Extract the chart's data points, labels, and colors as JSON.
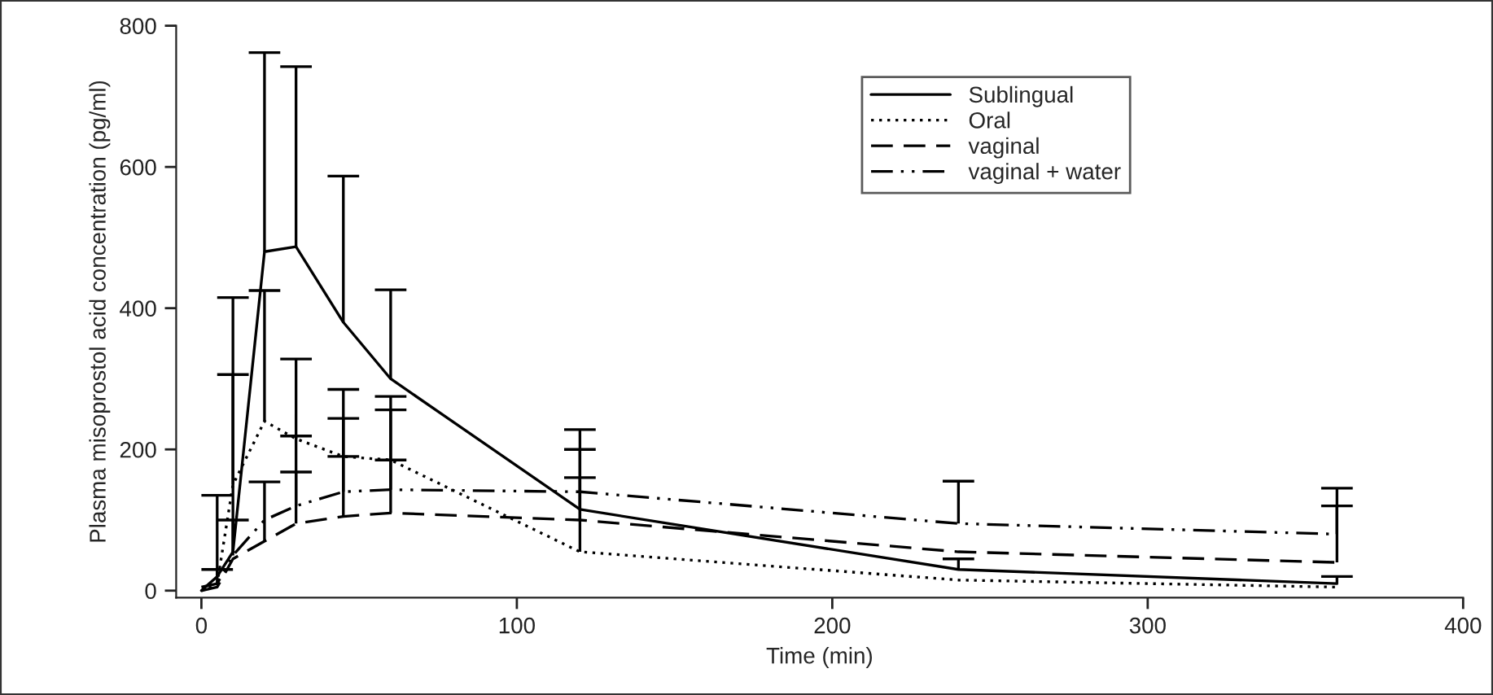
{
  "chart_data": {
    "type": "line",
    "xlabel": "Time (min)",
    "ylabel": "Plasma misoprostol acid concentration (pg/ml)",
    "x": [
      0,
      5,
      10,
      20,
      30,
      45,
      60,
      120,
      240,
      360
    ],
    "series": [
      {
        "name": "Sublingual",
        "color": "#000000",
        "line_style": "solid",
        "values": [
          0,
          20,
          55,
          480,
          487,
          380,
          300,
          115,
          30,
          10
        ],
        "errors": [
          null,
          [
            20,
            30
          ],
          [
            55,
            415
          ],
          [
            480,
            762
          ],
          [
            487,
            742
          ],
          [
            380,
            587
          ],
          [
            300,
            426
          ],
          [
            115,
            228
          ],
          [
            30,
            45
          ],
          [
            10,
            20
          ]
        ]
      },
      {
        "name": "Oral",
        "color": "#000000",
        "line_style": "dotted",
        "values": [
          0,
          10,
          150,
          240,
          215,
          190,
          185,
          55,
          15,
          5
        ],
        "errors": [
          null,
          null,
          [
            150,
            306
          ],
          [
            240,
            425
          ],
          [
            215,
            328
          ],
          [
            190,
            285
          ],
          [
            185,
            275
          ],
          [
            55,
            200
          ],
          null,
          null
        ]
      },
      {
        "name": "vaginal",
        "color": "#000000",
        "line_style": "dashed",
        "values": [
          0,
          5,
          45,
          70,
          95,
          105,
          110,
          100,
          55,
          40
        ],
        "errors": [
          null,
          null,
          null,
          [
            70,
            154
          ],
          [
            95,
            168
          ],
          [
            105,
            190
          ],
          [
            110,
            185
          ],
          [
            100,
            160
          ],
          null,
          [
            40,
            120
          ]
        ]
      },
      {
        "name": "vaginal + water",
        "color": "#000000",
        "line_style": "dashdot",
        "values": [
          5,
          10,
          50,
          100,
          120,
          140,
          143,
          140,
          95,
          80
        ],
        "errors": [
          null,
          [
            10,
            135
          ],
          [
            50,
            100
          ],
          null,
          [
            120,
            219
          ],
          [
            140,
            244
          ],
          [
            143,
            256
          ],
          null,
          [
            95,
            155
          ],
          [
            80,
            145
          ]
        ]
      }
    ],
    "xlim": [
      -8,
      400
    ],
    "ylim": [
      -10,
      800
    ],
    "xticks": [
      0,
      100,
      200,
      300,
      400
    ],
    "yticks": [
      0,
      200,
      400,
      600,
      800
    ],
    "grid": false,
    "legend": "top right"
  }
}
